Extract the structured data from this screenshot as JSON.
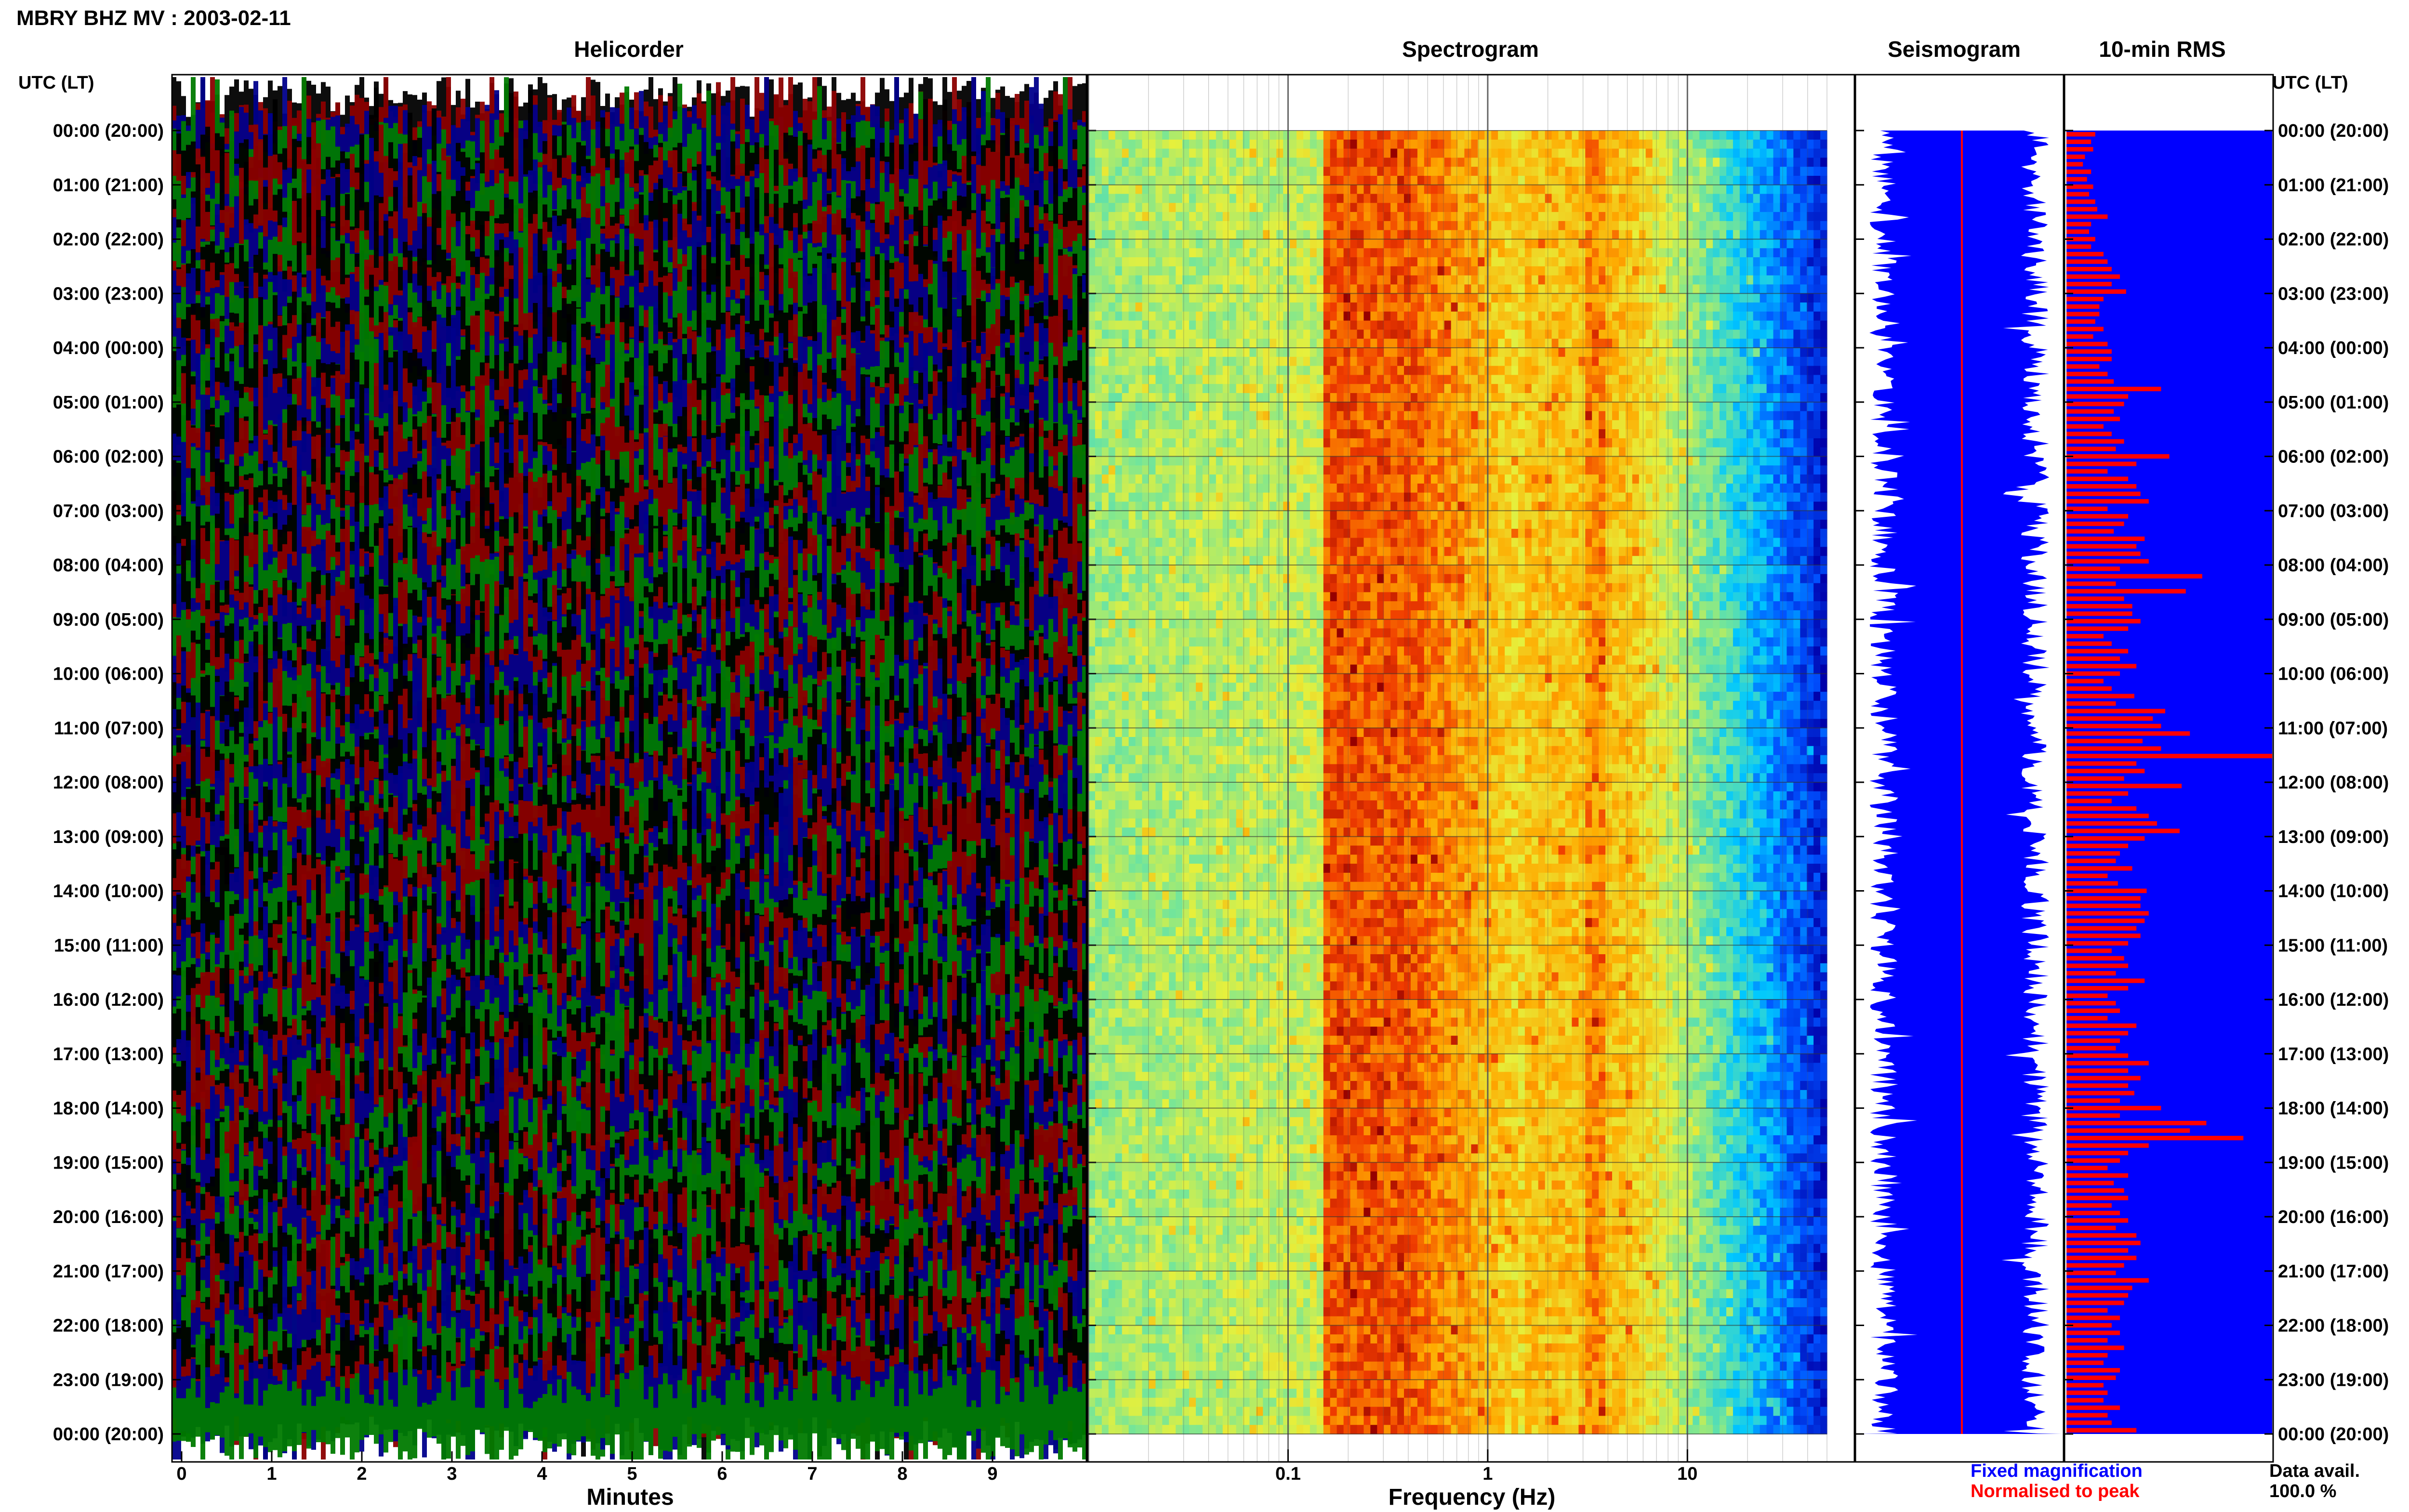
{
  "header": {
    "title": "MBRY BHZ MV : 2003-02-11"
  },
  "panels": {
    "helicorder": "Helicorder",
    "spectrogram": "Spectrogram",
    "seismogram": "Seismogram",
    "rms": "10-min RMS"
  },
  "time_axis": {
    "label_left": "UTC (LT)",
    "label_right": "UTC (LT)",
    "ticks": [
      "00:00 (20:00)",
      "01:00 (21:00)",
      "02:00 (22:00)",
      "03:00 (23:00)",
      "04:00 (00:00)",
      "05:00 (01:00)",
      "06:00 (02:00)",
      "07:00 (03:00)",
      "08:00 (04:00)",
      "09:00 (05:00)",
      "10:00 (06:00)",
      "11:00 (07:00)",
      "12:00 (08:00)",
      "13:00 (09:00)",
      "14:00 (10:00)",
      "15:00 (11:00)",
      "16:00 (12:00)",
      "17:00 (13:00)",
      "18:00 (14:00)",
      "19:00 (15:00)",
      "20:00 (16:00)",
      "21:00 (17:00)",
      "22:00 (18:00)",
      "23:00 (19:00)",
      "00:00 (20:00)"
    ]
  },
  "footer": {
    "xlabel_minutes": "Minutes",
    "xlabel_frequency": "Frequency (Hz)",
    "legend_fixed": "Fixed magnification",
    "legend_norm": "Normalised to peak",
    "data_avail_label": "Data avail.",
    "data_avail_value": "100.0 %"
  },
  "colors": {
    "helicorder_traces": [
      "#000000",
      "#8b0000",
      "#00008b",
      "#007a00"
    ],
    "seismogram_bg": "#0000ff",
    "rms_bar": "#ff0000",
    "legend_fixed": "#0000ff",
    "legend_norm": "#ff0000"
  },
  "chart_data": [
    {
      "type": "line",
      "panel": "Helicorder",
      "xlabel": "Minutes",
      "x_ticks": [
        0,
        1,
        2,
        3,
        4,
        5,
        6,
        7,
        8,
        9
      ],
      "xlim": [
        0,
        10
      ],
      "ylim_hours_utc": [
        0,
        24
      ]
    },
    {
      "type": "heatmap",
      "panel": "Spectrogram",
      "xlabel": "Frequency (Hz)",
      "x_scale": "log",
      "x_ticks": [
        0.1,
        1,
        10
      ],
      "x_tick_labels": [
        "0.1",
        "1",
        "10"
      ],
      "xlim": [
        0.01,
        50
      ],
      "dominant_band_hz": [
        0.2,
        0.35
      ],
      "secondary_band_hz": [
        3,
        4
      ],
      "ylim_hours_utc": [
        0,
        24
      ]
    },
    {
      "type": "bar",
      "panel": "10-min RMS",
      "orientation": "horizontal",
      "interval_minutes": 10,
      "values": [
        0.14,
        0.12,
        0.13,
        0.09,
        0.08,
        0.12,
        0.1,
        0.13,
        0.11,
        0.14,
        0.15,
        0.2,
        0.12,
        0.11,
        0.14,
        0.12,
        0.18,
        0.2,
        0.22,
        0.26,
        0.22,
        0.29,
        0.18,
        0.16,
        0.16,
        0.14,
        0.18,
        0.13,
        0.2,
        0.22,
        0.22,
        0.16,
        0.2,
        0.23,
        0.46,
        0.3,
        0.28,
        0.23,
        0.26,
        0.18,
        0.22,
        0.28,
        0.24,
        0.5,
        0.34,
        0.2,
        0.3,
        0.34,
        0.36,
        0.4,
        0.2,
        0.3,
        0.28,
        0.23,
        0.38,
        0.34,
        0.36,
        0.4,
        0.26,
        0.66,
        0.24,
        0.58,
        0.28,
        0.32,
        0.32,
        0.36,
        0.3,
        0.18,
        0.22,
        0.3,
        0.26,
        0.34,
        0.26,
        0.18,
        0.22,
        0.33,
        0.24,
        0.48,
        0.42,
        0.46,
        0.6,
        0.37,
        0.46,
        1.0,
        0.34,
        0.38,
        0.28,
        0.56,
        0.3,
        0.22,
        0.34,
        0.4,
        0.44,
        0.55,
        0.38,
        0.3,
        0.26,
        0.24,
        0.32,
        0.2,
        0.25,
        0.39,
        0.36,
        0.36,
        0.4,
        0.38,
        0.34,
        0.36,
        0.3,
        0.22,
        0.28,
        0.3,
        0.24,
        0.38,
        0.3,
        0.2,
        0.24,
        0.26,
        0.2,
        0.34,
        0.3,
        0.26,
        0.24,
        0.3,
        0.4,
        0.3,
        0.36,
        0.3,
        0.33,
        0.26,
        0.46,
        0.26,
        0.68,
        0.6,
        0.86,
        0.4,
        0.3,
        0.26,
        0.2,
        0.3,
        0.23,
        0.28,
        0.3,
        0.22,
        0.26,
        0.3,
        0.24,
        0.34,
        0.36,
        0.3,
        0.34,
        0.28,
        0.24,
        0.4,
        0.32,
        0.3,
        0.28,
        0.2,
        0.26,
        0.22,
        0.26,
        0.2,
        0.28,
        0.2,
        0.18,
        0.26,
        0.24,
        0.18,
        0.2,
        0.18,
        0.26,
        0.2,
        0.22,
        0.34
      ]
    }
  ]
}
